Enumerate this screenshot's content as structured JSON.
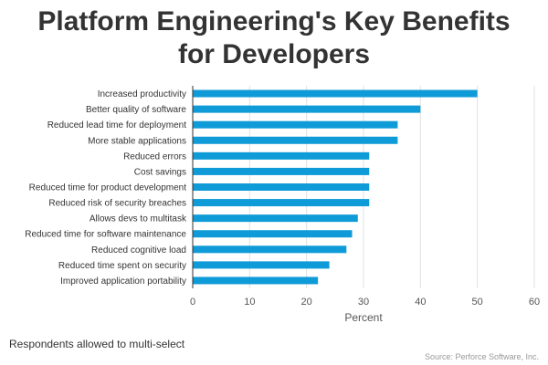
{
  "title_line1": "Platform Engineering's Key Benefits",
  "title_line2": "for Developers",
  "note": "Respondents allowed to multi-select",
  "source": "Source: Perforce Software, Inc.",
  "colors": {
    "bar": "#0f9bd7",
    "grid": "#e0e0e0",
    "axis": "#333333",
    "label": "#333333"
  },
  "chart_data": {
    "type": "bar",
    "orientation": "horizontal",
    "categories": [
      "Increased productivity",
      "Better quality of software",
      "Reduced lead time for deployment",
      "More stable applications",
      "Reduced errors",
      "Cost savings",
      "Reduced time for product development",
      "Reduced risk of security breaches",
      "Allows devs to multitask",
      "Reduced time for software maintenance",
      "Reduced cognitive load",
      "Reduced time spent on security",
      "Improved application portability"
    ],
    "values": [
      50,
      40,
      36,
      36,
      31,
      31,
      31,
      31,
      29,
      28,
      27,
      24,
      22
    ],
    "xlabel": "Percent",
    "ylabel": "",
    "xlim": [
      0,
      60
    ],
    "xticks": [
      "0",
      "10",
      "20",
      "30",
      "40",
      "50",
      "60"
    ],
    "grid": true
  }
}
